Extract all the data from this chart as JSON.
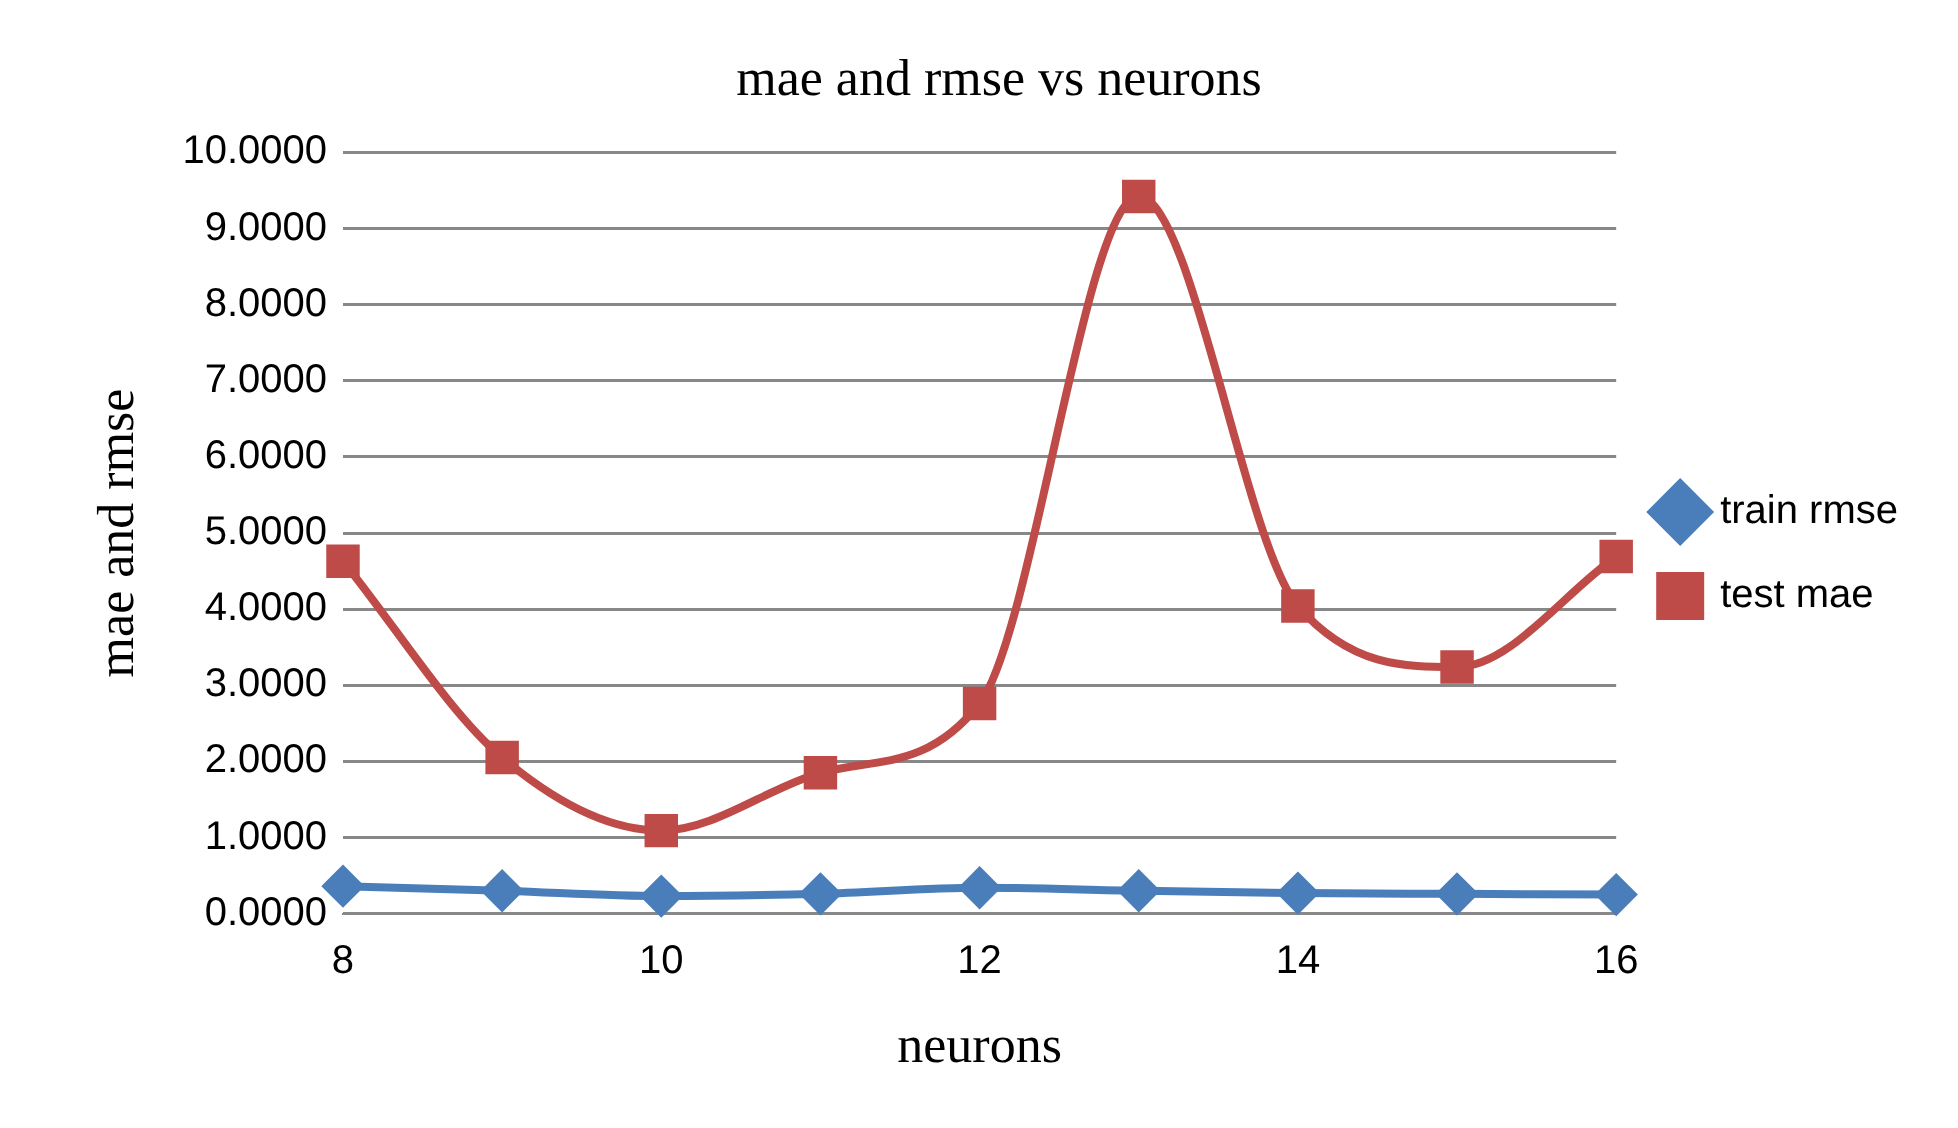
{
  "chart_data": {
    "type": "line",
    "title": "mae and rmse vs neurons",
    "xlabel": "neurons",
    "ylabel": "mae and rmse",
    "x": [
      8,
      9,
      10,
      11,
      12,
      13,
      14,
      15,
      16
    ],
    "series": [
      {
        "name": "train rmse",
        "color": "#4a7ebb",
        "marker": "diamond",
        "values": [
          0.36,
          0.3,
          0.23,
          0.26,
          0.34,
          0.3,
          0.27,
          0.26,
          0.25
        ]
      },
      {
        "name": "test mae",
        "color": "#be4b48",
        "marker": "square",
        "values": [
          4.63,
          2.05,
          1.09,
          1.85,
          2.76,
          9.42,
          4.04,
          3.24,
          4.69
        ]
      }
    ],
    "xlim": [
      8,
      16
    ],
    "xticks": [
      8,
      10,
      12,
      14,
      16
    ],
    "ylim": [
      0,
      10
    ],
    "yticks": [
      {
        "value": 0,
        "label": "0.0000"
      },
      {
        "value": 1,
        "label": "1.0000"
      },
      {
        "value": 2,
        "label": "2.0000"
      },
      {
        "value": 3,
        "label": "3.0000"
      },
      {
        "value": 4,
        "label": "4.0000"
      },
      {
        "value": 5,
        "label": "5.0000"
      },
      {
        "value": 6,
        "label": "6.0000"
      },
      {
        "value": 7,
        "label": "7.0000"
      },
      {
        "value": 8,
        "label": "8.0000"
      },
      {
        "value": 9,
        "label": "9.0000"
      },
      {
        "value": 10,
        "label": "10.0000"
      }
    ],
    "grid": "y",
    "legend": "right",
    "line_style": "solid"
  }
}
